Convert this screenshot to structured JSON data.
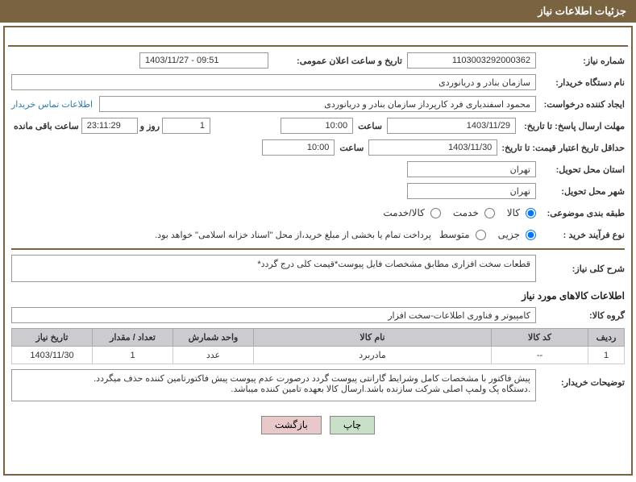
{
  "header": {
    "title": "جزئیات اطلاعات نیاز"
  },
  "labels": {
    "need_number": "شماره نیاز:",
    "announce_datetime": "تاریخ و ساعت اعلان عمومی:",
    "buyer_org": "نام دستگاه خریدار:",
    "requester": "ایجاد کننده درخواست:",
    "contact_link": "اطلاعات تماس خریدار",
    "deadline_response": "مهلت ارسال پاسخ: تا تاریخ:",
    "min_valid_price": "حداقل تاریخ اعتبار قیمت: تا تاریخ:",
    "delivery_province": "استان محل تحویل:",
    "delivery_city": "شهر محل تحویل:",
    "subject_category": "طبقه بندی موضوعی:",
    "purchase_process": "نوع فرآیند خرید :",
    "time_word": "ساعت",
    "day_word": "روز و",
    "remaining": "ساعت باقی مانده",
    "desc_title": "شرح کلی نیاز:",
    "goods_info_title": "اطلاعات کالاهای مورد نیاز",
    "goods_group": "گروه کالا:",
    "buyer_notes_label": "توضیحات خریدار:"
  },
  "values": {
    "need_number": "1103003292000362",
    "announce_datetime": "1403/11/27 - 09:51",
    "buyer_org": "سازمان بنادر و دریانوردی",
    "requester": "محمود اسفندیاری فرد کارپرداز سازمان بنادر و دریانوردی",
    "deadline_date": "1403/11/29",
    "deadline_time": "10:00",
    "days_left": "1",
    "time_left": "23:11:29",
    "valid_date": "1403/11/30",
    "valid_time": "10:00",
    "province": "تهران",
    "city": "تهران",
    "process_note": "پرداخت تمام یا بخشی از مبلغ خرید،از محل \"اسناد خزانه اسلامی\" خواهد بود.",
    "description": "قطعات سخت افزاری مطابق مشخصات فایل پیوست*قیمت کلی درج گردد*",
    "goods_group": "کامپیوتر و فناوری اطلاعات-سخت افزار",
    "buyer_notes": "پیش فاکتور با مشخصات کامل وشرایط گارانتی پیوست گردد درصورت عدم پیوست پیش فاکتورتامین کننده حذف میگردد.\n.دستگاه پک ولمپ اصلی شرکت سازنده باشد.ارسال کالا بعهده تامین کننده میباشد."
  },
  "radios": {
    "category": {
      "goods": "کالا",
      "service": "خدمت",
      "both": "کالا/خدمت",
      "selected": "goods"
    },
    "process": {
      "partial": "جزیی",
      "medium": "متوسط",
      "selected": "partial"
    }
  },
  "table": {
    "headers": {
      "row": "ردیف",
      "code": "کد کالا",
      "name": "نام کالا",
      "unit": "واحد شمارش",
      "qty": "تعداد / مقدار",
      "date": "تاریخ نیاز"
    },
    "rows": [
      {
        "row": "1",
        "code": "--",
        "name": "مادربرد",
        "unit": "عدد",
        "qty": "1",
        "date": "1403/11/30"
      }
    ]
  },
  "buttons": {
    "print": "چاپ",
    "back": "بازگشت"
  }
}
